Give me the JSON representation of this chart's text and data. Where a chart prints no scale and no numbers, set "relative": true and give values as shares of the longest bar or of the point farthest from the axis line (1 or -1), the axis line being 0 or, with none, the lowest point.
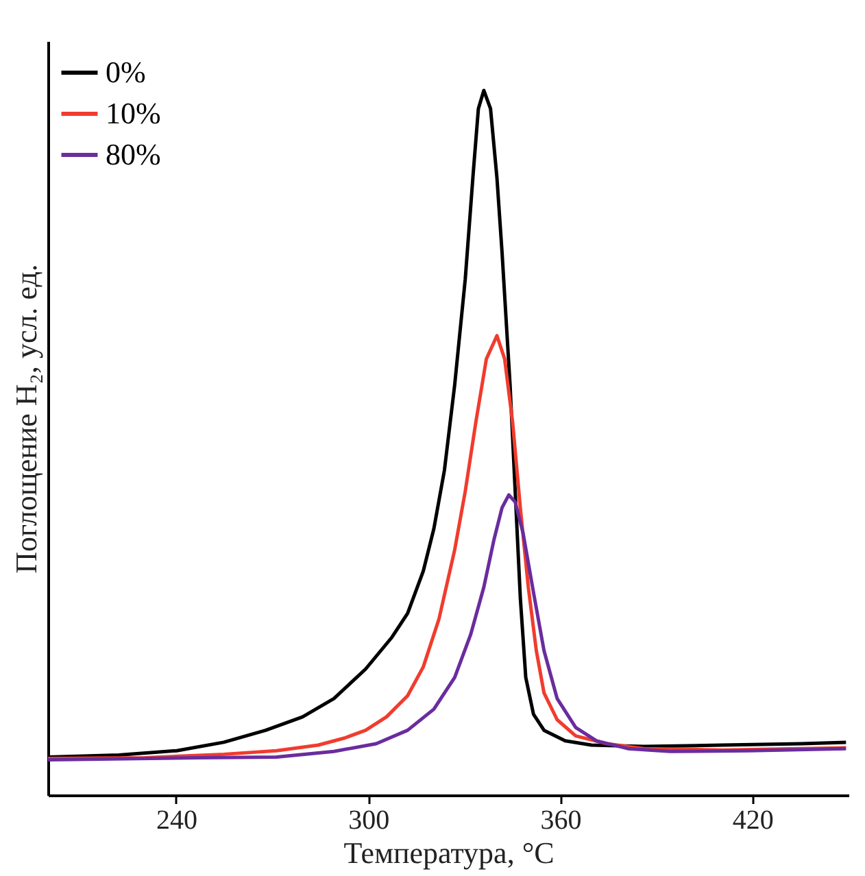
{
  "chart_data": {
    "type": "line",
    "xlabel": "Температура, °C",
    "ylabel": "Поглощение H₂, усл. ед.",
    "relative": true,
    "xlim": [
      200,
      450
    ],
    "xticks": [
      240,
      300,
      360,
      420
    ],
    "legend": "top left",
    "grid": false,
    "marker": "none",
    "line_style": "solid",
    "series": [
      {
        "name": "0%",
        "color": "#000000",
        "x": [
          200,
          222.1,
          240.2,
          254.9,
          268.0,
          279.5,
          289.3,
          299.2,
          307.4,
          312.3,
          317.2,
          320.5,
          323.8,
          327.0,
          330.3,
          332.8,
          334.4,
          336.1,
          338.2,
          340.2,
          341.8,
          344.3,
          345.9,
          347.5,
          349.2,
          351.6,
          354.9,
          361.5,
          369.7,
          386.1,
          410.7,
          435.2,
          449.2
        ],
        "values": [
          0.054,
          0.057,
          0.063,
          0.075,
          0.092,
          0.111,
          0.137,
          0.179,
          0.224,
          0.258,
          0.318,
          0.378,
          0.461,
          0.582,
          0.732,
          0.883,
          0.974,
          1.0,
          0.974,
          0.876,
          0.77,
          0.582,
          0.431,
          0.28,
          0.167,
          0.115,
          0.092,
          0.077,
          0.071,
          0.069,
          0.071,
          0.073,
          0.075
        ]
      },
      {
        "name": "10%",
        "color": "#f03c2e",
        "x": [
          200,
          230.3,
          254.9,
          271.3,
          284.4,
          292.6,
          299.2,
          305.7,
          312.3,
          317.2,
          322.1,
          327.0,
          330.3,
          333.6,
          336.9,
          340.2,
          342.6,
          345.1,
          347.5,
          350.0,
          352.5,
          354.9,
          359.0,
          364.8,
          374.6,
          386.1,
          410.7,
          449.2
        ],
        "values": [
          0.052,
          0.053,
          0.058,
          0.063,
          0.071,
          0.081,
          0.092,
          0.111,
          0.141,
          0.182,
          0.25,
          0.348,
          0.431,
          0.529,
          0.619,
          0.652,
          0.619,
          0.529,
          0.408,
          0.295,
          0.205,
          0.145,
          0.107,
          0.084,
          0.073,
          0.066,
          0.064,
          0.067
        ]
      },
      {
        "name": "80%",
        "color": "#6a2c9e",
        "x": [
          200,
          246.7,
          271.3,
          289.3,
          302.5,
          312.3,
          320.5,
          327.0,
          332.0,
          336.1,
          339.3,
          341.8,
          343.9,
          345.9,
          348.4,
          351.6,
          354.9,
          359.0,
          364.8,
          371.3,
          381.1,
          394.3,
          418.9,
          449.2
        ],
        "values": [
          0.05,
          0.053,
          0.054,
          0.062,
          0.073,
          0.092,
          0.122,
          0.167,
          0.228,
          0.295,
          0.363,
          0.408,
          0.426,
          0.416,
          0.371,
          0.288,
          0.205,
          0.137,
          0.096,
          0.077,
          0.066,
          0.062,
          0.063,
          0.066
        ]
      }
    ]
  }
}
